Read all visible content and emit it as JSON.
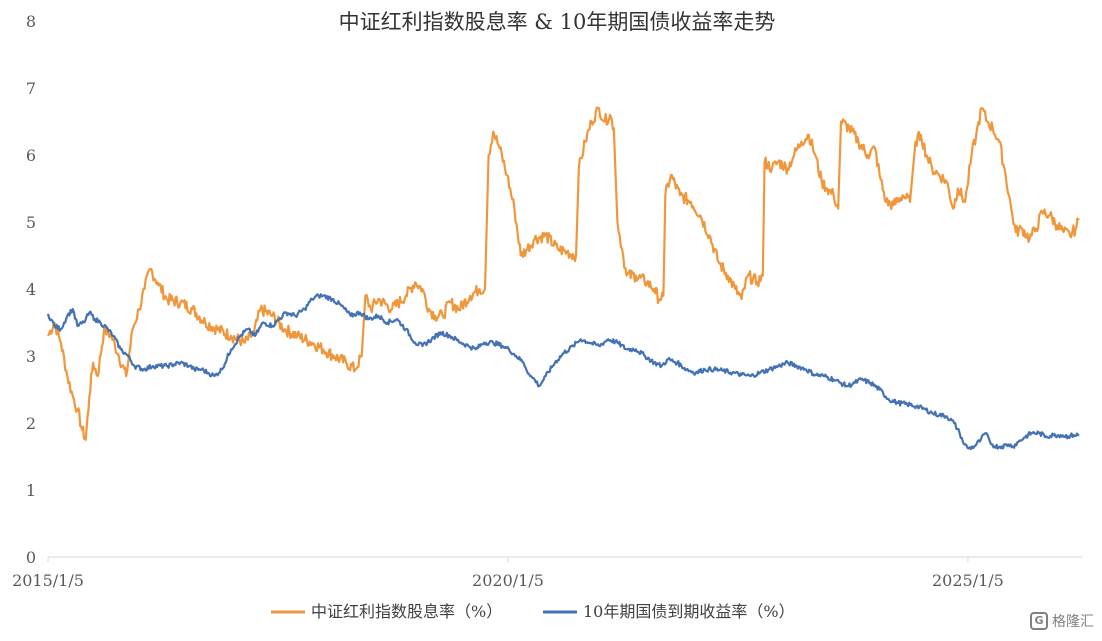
{
  "chart_data": {
    "type": "line",
    "title": "中证红利指数股息率 & 10年期国债收益率走势",
    "xlabel": "",
    "ylabel": "",
    "ylim": [
      0,
      8
    ],
    "y_ticks": [
      "0",
      "1",
      "2",
      "3",
      "4",
      "5",
      "6",
      "7",
      "8"
    ],
    "x_ticks": [
      {
        "label": "2015/1/5",
        "year": 2015.01
      },
      {
        "label": "2020/1/5",
        "year": 2020.01
      },
      {
        "label": "2025/1/5",
        "year": 2025.01
      }
    ],
    "xlim": [
      2015.01,
      2026.25
    ],
    "grid": false,
    "legend_position": "bottom",
    "series": [
      {
        "name": "中证红利指数股息率（%）",
        "color": "#F0973C",
        "points": [
          [
            2015.01,
            3.3
          ],
          [
            2015.08,
            3.5
          ],
          [
            2015.15,
            3.2
          ],
          [
            2015.22,
            2.7
          ],
          [
            2015.28,
            2.4
          ],
          [
            2015.33,
            2.2
          ],
          [
            2015.38,
            1.9
          ],
          [
            2015.42,
            1.75
          ],
          [
            2015.46,
            2.4
          ],
          [
            2015.5,
            2.9
          ],
          [
            2015.55,
            2.7
          ],
          [
            2015.62,
            3.4
          ],
          [
            2015.7,
            3.3
          ],
          [
            2015.78,
            3.0
          ],
          [
            2015.86,
            2.7
          ],
          [
            2015.93,
            3.4
          ],
          [
            2016.0,
            3.7
          ],
          [
            2016.06,
            4.0
          ],
          [
            2016.12,
            4.3
          ],
          [
            2016.2,
            4.1
          ],
          [
            2016.3,
            3.85
          ],
          [
            2016.45,
            3.8
          ],
          [
            2016.58,
            3.7
          ],
          [
            2016.72,
            3.5
          ],
          [
            2016.85,
            3.4
          ],
          [
            2017.0,
            3.3
          ],
          [
            2017.15,
            3.2
          ],
          [
            2017.25,
            3.35
          ],
          [
            2017.32,
            3.7
          ],
          [
            2017.45,
            3.6
          ],
          [
            2017.58,
            3.4
          ],
          [
            2017.72,
            3.3
          ],
          [
            2017.88,
            3.2
          ],
          [
            2018.0,
            3.1
          ],
          [
            2018.12,
            3.0
          ],
          [
            2018.25,
            2.9
          ],
          [
            2018.35,
            2.8
          ],
          [
            2018.42,
            3.0
          ],
          [
            2018.46,
            3.9
          ],
          [
            2018.52,
            3.7
          ],
          [
            2018.6,
            3.85
          ],
          [
            2018.75,
            3.7
          ],
          [
            2018.9,
            3.9
          ],
          [
            2019.0,
            4.1
          ],
          [
            2019.08,
            4.0
          ],
          [
            2019.15,
            3.7
          ],
          [
            2019.22,
            3.6
          ],
          [
            2019.3,
            3.6
          ],
          [
            2019.38,
            3.8
          ],
          [
            2019.48,
            3.7
          ],
          [
            2019.6,
            3.9
          ],
          [
            2019.7,
            4.0
          ],
          [
            2019.76,
            4.0
          ],
          [
            2019.8,
            6.0
          ],
          [
            2019.85,
            6.35
          ],
          [
            2019.92,
            6.1
          ],
          [
            2020.0,
            5.7
          ],
          [
            2020.08,
            5.2
          ],
          [
            2020.15,
            4.5
          ],
          [
            2020.22,
            4.6
          ],
          [
            2020.3,
            4.75
          ],
          [
            2020.42,
            4.8
          ],
          [
            2020.55,
            4.6
          ],
          [
            2020.65,
            4.55
          ],
          [
            2020.75,
            4.5
          ],
          [
            2020.78,
            5.8
          ],
          [
            2020.85,
            6.2
          ],
          [
            2020.92,
            6.5
          ],
          [
            2021.0,
            6.7
          ],
          [
            2021.06,
            6.5
          ],
          [
            2021.12,
            6.6
          ],
          [
            2021.16,
            6.4
          ],
          [
            2021.2,
            5.0
          ],
          [
            2021.25,
            4.6
          ],
          [
            2021.3,
            4.2
          ],
          [
            2021.4,
            4.2
          ],
          [
            2021.52,
            4.1
          ],
          [
            2021.6,
            4.0
          ],
          [
            2021.65,
            3.85
          ],
          [
            2021.7,
            3.9
          ],
          [
            2021.72,
            5.4
          ],
          [
            2021.78,
            5.7
          ],
          [
            2021.88,
            5.4
          ],
          [
            2022.0,
            5.3
          ],
          [
            2022.1,
            5.1
          ],
          [
            2022.2,
            4.8
          ],
          [
            2022.3,
            4.4
          ],
          [
            2022.4,
            4.2
          ],
          [
            2022.48,
            4.0
          ],
          [
            2022.55,
            3.85
          ],
          [
            2022.62,
            4.2
          ],
          [
            2022.72,
            4.1
          ],
          [
            2022.78,
            4.2
          ],
          [
            2022.8,
            5.9
          ],
          [
            2022.88,
            5.8
          ],
          [
            2022.95,
            5.9
          ],
          [
            2023.05,
            5.8
          ],
          [
            2023.12,
            6.0
          ],
          [
            2023.2,
            6.2
          ],
          [
            2023.28,
            6.3
          ],
          [
            2023.35,
            6.0
          ],
          [
            2023.42,
            5.6
          ],
          [
            2023.48,
            5.5
          ],
          [
            2023.55,
            5.4
          ],
          [
            2023.6,
            5.2
          ],
          [
            2023.63,
            6.5
          ],
          [
            2023.72,
            6.4
          ],
          [
            2023.82,
            6.2
          ],
          [
            2023.92,
            6.0
          ],
          [
            2024.0,
            6.1
          ],
          [
            2024.05,
            5.7
          ],
          [
            2024.12,
            5.3
          ],
          [
            2024.2,
            5.25
          ],
          [
            2024.3,
            5.4
          ],
          [
            2024.38,
            5.3
          ],
          [
            2024.44,
            6.2
          ],
          [
            2024.5,
            6.3
          ],
          [
            2024.56,
            6.0
          ],
          [
            2024.62,
            5.8
          ],
          [
            2024.7,
            5.7
          ],
          [
            2024.78,
            5.6
          ],
          [
            2024.85,
            5.2
          ],
          [
            2024.9,
            5.5
          ],
          [
            2024.98,
            5.3
          ],
          [
            2025.0,
            5.5
          ],
          [
            2025.05,
            6.0
          ],
          [
            2025.1,
            6.3
          ],
          [
            2025.16,
            6.7
          ],
          [
            2025.22,
            6.5
          ],
          [
            2025.28,
            6.4
          ],
          [
            2025.35,
            6.2
          ],
          [
            2025.42,
            5.7
          ],
          [
            2025.48,
            5.2
          ],
          [
            2025.53,
            4.85
          ],
          [
            2025.6,
            4.9
          ],
          [
            2025.68,
            4.75
          ],
          [
            2025.75,
            4.9
          ],
          [
            2025.82,
            5.15
          ],
          [
            2025.9,
            5.1
          ],
          [
            2025.98,
            4.95
          ],
          [
            2026.05,
            4.85
          ],
          [
            2026.12,
            4.8
          ],
          [
            2026.18,
            4.9
          ],
          [
            2026.22,
            5.05
          ]
        ]
      },
      {
        "name": "10年期国债到期收益率（%）",
        "color": "#4472B4",
        "points": [
          [
            2015.01,
            3.63
          ],
          [
            2015.08,
            3.45
          ],
          [
            2015.15,
            3.4
          ],
          [
            2015.22,
            3.6
          ],
          [
            2015.28,
            3.7
          ],
          [
            2015.33,
            3.45
          ],
          [
            2015.4,
            3.5
          ],
          [
            2015.46,
            3.65
          ],
          [
            2015.52,
            3.55
          ],
          [
            2015.58,
            3.5
          ],
          [
            2015.66,
            3.4
          ],
          [
            2015.72,
            3.3
          ],
          [
            2015.8,
            3.1
          ],
          [
            2015.88,
            3.0
          ],
          [
            2015.95,
            2.85
          ],
          [
            2016.05,
            2.8
          ],
          [
            2016.15,
            2.85
          ],
          [
            2016.3,
            2.85
          ],
          [
            2016.45,
            2.9
          ],
          [
            2016.55,
            2.85
          ],
          [
            2016.6,
            2.8
          ],
          [
            2016.68,
            2.8
          ],
          [
            2016.75,
            2.75
          ],
          [
            2016.82,
            2.7
          ],
          [
            2016.9,
            2.8
          ],
          [
            2017.0,
            3.1
          ],
          [
            2017.1,
            3.3
          ],
          [
            2017.18,
            3.4
          ],
          [
            2017.26,
            3.3
          ],
          [
            2017.35,
            3.5
          ],
          [
            2017.45,
            3.45
          ],
          [
            2017.52,
            3.55
          ],
          [
            2017.6,
            3.65
          ],
          [
            2017.7,
            3.6
          ],
          [
            2017.8,
            3.7
          ],
          [
            2017.88,
            3.85
          ],
          [
            2017.95,
            3.9
          ],
          [
            2018.0,
            3.9
          ],
          [
            2018.1,
            3.85
          ],
          [
            2018.2,
            3.75
          ],
          [
            2018.3,
            3.6
          ],
          [
            2018.4,
            3.65
          ],
          [
            2018.5,
            3.55
          ],
          [
            2018.6,
            3.6
          ],
          [
            2018.7,
            3.5
          ],
          [
            2018.8,
            3.55
          ],
          [
            2018.9,
            3.4
          ],
          [
            2019.0,
            3.2
          ],
          [
            2019.08,
            3.15
          ],
          [
            2019.18,
            3.25
          ],
          [
            2019.28,
            3.35
          ],
          [
            2019.38,
            3.3
          ],
          [
            2019.5,
            3.2
          ],
          [
            2019.58,
            3.15
          ],
          [
            2019.66,
            3.1
          ],
          [
            2019.75,
            3.2
          ],
          [
            2019.85,
            3.2
          ],
          [
            2019.95,
            3.15
          ],
          [
            2020.02,
            3.1
          ],
          [
            2020.1,
            3.0
          ],
          [
            2020.18,
            2.9
          ],
          [
            2020.25,
            2.7
          ],
          [
            2020.3,
            2.65
          ],
          [
            2020.35,
            2.55
          ],
          [
            2020.42,
            2.7
          ],
          [
            2020.52,
            2.9
          ],
          [
            2020.62,
            3.05
          ],
          [
            2020.72,
            3.15
          ],
          [
            2020.8,
            3.25
          ],
          [
            2020.9,
            3.2
          ],
          [
            2021.0,
            3.15
          ],
          [
            2021.1,
            3.25
          ],
          [
            2021.2,
            3.2
          ],
          [
            2021.3,
            3.1
          ],
          [
            2021.4,
            3.1
          ],
          [
            2021.5,
            3.0
          ],
          [
            2021.6,
            2.9
          ],
          [
            2021.68,
            2.85
          ],
          [
            2021.75,
            2.95
          ],
          [
            2021.85,
            2.9
          ],
          [
            2021.95,
            2.8
          ],
          [
            2022.05,
            2.75
          ],
          [
            2022.15,
            2.8
          ],
          [
            2022.25,
            2.8
          ],
          [
            2022.35,
            2.78
          ],
          [
            2022.45,
            2.75
          ],
          [
            2022.55,
            2.72
          ],
          [
            2022.65,
            2.7
          ],
          [
            2022.75,
            2.75
          ],
          [
            2022.85,
            2.8
          ],
          [
            2022.95,
            2.85
          ],
          [
            2023.05,
            2.9
          ],
          [
            2023.15,
            2.85
          ],
          [
            2023.25,
            2.8
          ],
          [
            2023.35,
            2.72
          ],
          [
            2023.45,
            2.7
          ],
          [
            2023.55,
            2.65
          ],
          [
            2023.62,
            2.6
          ],
          [
            2023.7,
            2.55
          ],
          [
            2023.78,
            2.6
          ],
          [
            2023.85,
            2.65
          ],
          [
            2023.95,
            2.6
          ],
          [
            2024.05,
            2.5
          ],
          [
            2024.15,
            2.35
          ],
          [
            2024.25,
            2.3
          ],
          [
            2024.35,
            2.28
          ],
          [
            2024.45,
            2.25
          ],
          [
            2024.55,
            2.2
          ],
          [
            2024.62,
            2.15
          ],
          [
            2024.7,
            2.12
          ],
          [
            2024.78,
            2.1
          ],
          [
            2024.86,
            2.0
          ],
          [
            2024.92,
            1.85
          ],
          [
            2024.97,
            1.68
          ],
          [
            2025.02,
            1.62
          ],
          [
            2025.08,
            1.65
          ],
          [
            2025.15,
            1.75
          ],
          [
            2025.2,
            1.85
          ],
          [
            2025.25,
            1.72
          ],
          [
            2025.3,
            1.65
          ],
          [
            2025.38,
            1.65
          ],
          [
            2025.45,
            1.68
          ],
          [
            2025.5,
            1.65
          ],
          [
            2025.56,
            1.72
          ],
          [
            2025.62,
            1.78
          ],
          [
            2025.7,
            1.85
          ],
          [
            2025.78,
            1.85
          ],
          [
            2025.86,
            1.8
          ],
          [
            2025.94,
            1.82
          ],
          [
            2026.02,
            1.82
          ],
          [
            2026.1,
            1.8
          ],
          [
            2026.16,
            1.82
          ],
          [
            2026.22,
            1.82
          ]
        ]
      }
    ]
  },
  "watermark": {
    "glyph": "G",
    "text": "格隆汇"
  }
}
